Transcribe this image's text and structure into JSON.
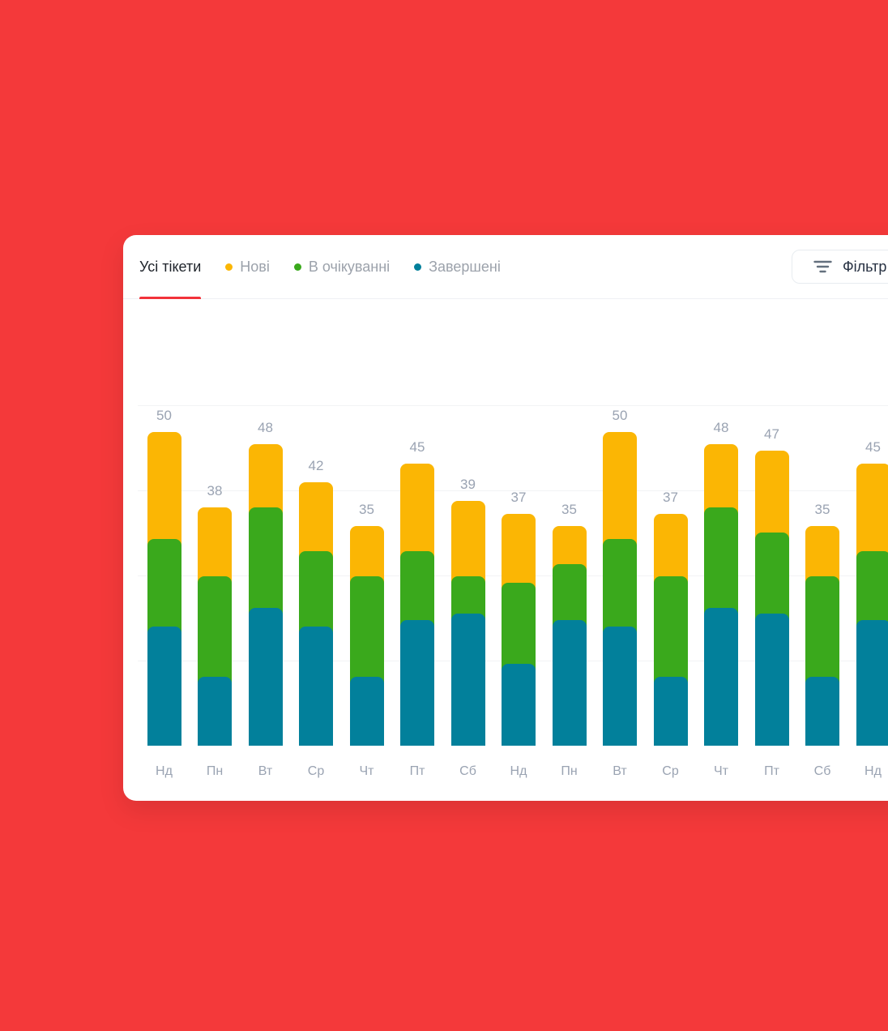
{
  "colors": {
    "background": "#F4393A",
    "card": "#FFFFFF",
    "accent_red": "#F2333A",
    "new_yellow": "#FBB604",
    "pending_green": "#3AA91C",
    "completed_teal": "#02809B",
    "gridline": "#F2F3F5",
    "label_gray": "#9AA3B2",
    "tab_inactive": "#9CA2AB",
    "tab_active": "#1F242B",
    "button_text": "#273142",
    "button_border": "#E8ECF0",
    "icon_gray": "#64707E"
  },
  "tabs": {
    "all_label": "Усі тікети",
    "filters": [
      {
        "label": "Нові",
        "color": "#FBB604"
      },
      {
        "label": "В очікуванні",
        "color": "#3AA91C"
      },
      {
        "label": "Завершені",
        "color": "#02809B"
      }
    ]
  },
  "filter_button": {
    "label": "Фільтр",
    "icon": "filter-icon"
  },
  "chart_data": {
    "type": "bar",
    "stacked": true,
    "title": "",
    "xlabel": "",
    "ylabel": "",
    "grid": "horizontal",
    "legend_position": "top",
    "value_labels_shown": true,
    "categories": [
      "Нд",
      "Пн",
      "Вт",
      "Ср",
      "Чт",
      "Пт",
      "Сб",
      "Нд",
      "Пн",
      "Вт",
      "Ср",
      "Чт",
      "Пт",
      "Сб",
      "Нд"
    ],
    "totals": [
      50,
      38,
      48,
      42,
      35,
      45,
      39,
      37,
      35,
      50,
      37,
      48,
      47,
      35,
      45
    ],
    "series": [
      {
        "name": "Завершені",
        "color": "#02809B",
        "values": [
          19,
          11,
          22,
          19,
          11,
          20,
          21,
          13,
          20,
          19,
          11,
          22,
          21,
          11,
          20
        ]
      },
      {
        "name": "В очікуванні",
        "color": "#3AA91C",
        "values": [
          14,
          16,
          16,
          12,
          16,
          11,
          6,
          13,
          9,
          14,
          16,
          16,
          13,
          16,
          11
        ]
      },
      {
        "name": "Нові",
        "color": "#FBB604",
        "values": [
          17,
          11,
          10,
          11,
          8,
          14,
          12,
          11,
          6,
          17,
          10,
          10,
          13,
          8,
          14
        ]
      }
    ]
  }
}
